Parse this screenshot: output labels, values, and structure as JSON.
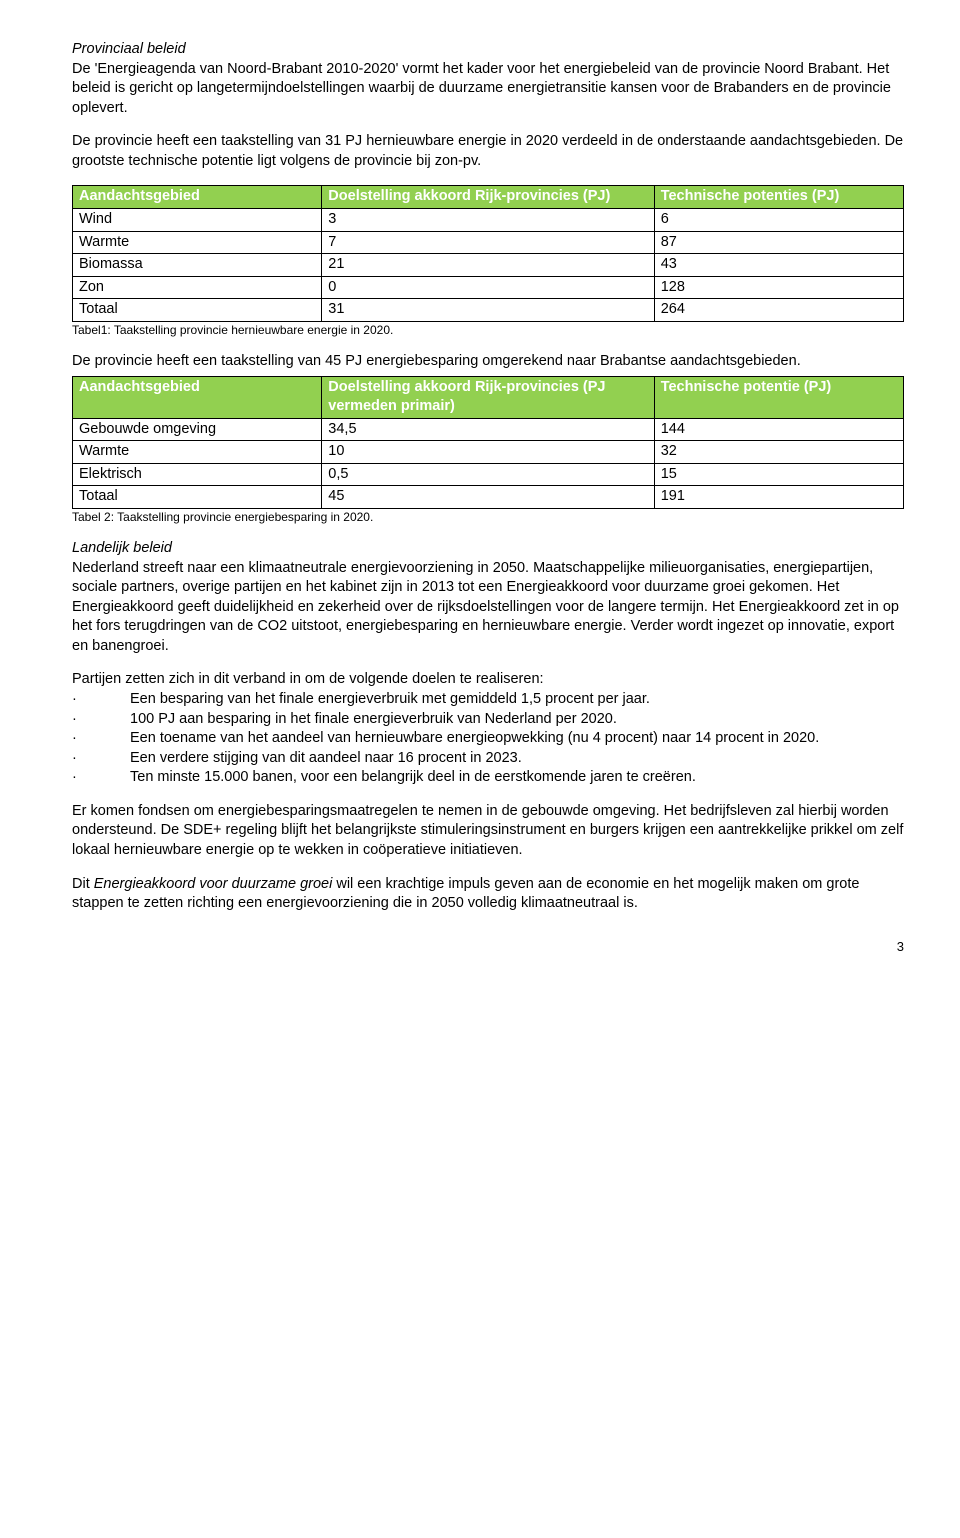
{
  "header_bg": "#92d050",
  "section1": {
    "heading": "Provinciaal beleid",
    "para1": "De 'Energieagenda van Noord-Brabant 2010-2020' vormt het kader voor het energiebeleid van de provincie Noord Brabant. Het beleid is gericht op langetermijndoelstellingen waarbij de duurzame energietransitie kansen voor de Brabanders en de provincie oplevert.",
    "para2": "De provincie heeft een taakstelling van 31 PJ hernieuwbare energie in 2020 verdeeld in de onderstaande aandachtsgebieden. De grootste technische potentie ligt volgens de provincie bij zon-pv."
  },
  "table1": {
    "columns": [
      "Aandachtsgebied",
      "Doelstelling akkoord Rijk-provincies (PJ)",
      "Technische potenties (PJ)"
    ],
    "rows": [
      [
        "Wind",
        "3",
        "6"
      ],
      [
        "Warmte",
        "7",
        "87"
      ],
      [
        "Biomassa",
        "21",
        "43"
      ],
      [
        "Zon",
        "0",
        "128"
      ],
      [
        "Totaal",
        "31",
        "264"
      ]
    ],
    "caption": "Tabel1: Taakstelling provincie hernieuwbare energie in 2020."
  },
  "table2": {
    "intro": "De provincie heeft een taakstelling van 45 PJ energiebesparing omgerekend naar Brabantse aandachtsgebieden.",
    "columns": [
      "Aandachtsgebied",
      "Doelstelling akkoord Rijk-provincies (PJ vermeden primair)",
      "Technische potentie (PJ)"
    ],
    "rows": [
      [
        "Gebouwde omgeving",
        "34,5",
        "144"
      ],
      [
        "Warmte",
        "10",
        "32"
      ],
      [
        "Elektrisch",
        "0,5",
        "15"
      ],
      [
        "Totaal",
        "45",
        "191"
      ]
    ],
    "caption": "Tabel 2: Taakstelling provincie energiebesparing in 2020."
  },
  "section2": {
    "heading": "Landelijk beleid",
    "para1": "Nederland streeft naar een klimaatneutrale energievoorziening in 2050. Maatschappelijke milieuorganisaties, energiepartijen, sociale partners, overige partijen en het kabinet zijn in 2013 tot een Energieakkoord voor duurzame groei gekomen. Het Energieakkoord geeft duidelijkheid en zekerheid over de rijksdoelstellingen voor de langere termijn. Het Energieakkoord zet in op het fors terugdringen van de CO2 uitstoot, energiebesparing en hernieuwbare energie. Verder wordt ingezet op innovatie, export en banengroei.",
    "para2_lead": "Partijen zetten zich in dit verband in om de volgende doelen te realiseren:",
    "bullets": [
      "Een besparing van het finale energieverbruik met gemiddeld 1,5 procent per jaar.",
      "100 PJ aan besparing in het finale energieverbruik van Nederland per 2020.",
      "Een toename van het aandeel van hernieuwbare energieopwekking (nu 4 procent) naar 14 procent in 2020.",
      "Een verdere stijging van dit aandeel naar 16 procent in 2023.",
      "Ten minste 15.000 banen, voor een belangrijk deel in de eerstkomende jaren te creëren."
    ],
    "para3": "Er komen fondsen om energiebesparingsmaatregelen te nemen in de gebouwde omgeving. Het bedrijfsleven zal hierbij worden ondersteund. De SDE+ regeling blijft het belangrijkste stimuleringsinstrument en burgers krijgen een aantrekkelijke prikkel om zelf lokaal hernieuwbare energie op te wekken in coöperatieve initiatieven.",
    "para4_pre": "Dit ",
    "para4_italic": "Energieakkoord voor duurzame groei",
    "para4_post": " wil een krachtige impuls geven aan de economie en het mogelijk maken om grote stappen te zetten richting een energievoorziening die in 2050 volledig klimaatneutraal is."
  },
  "page_number": "3"
}
